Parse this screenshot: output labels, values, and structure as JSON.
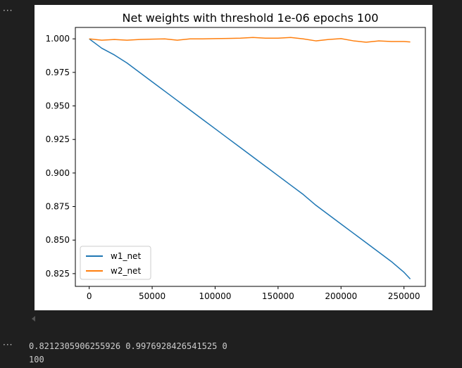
{
  "cell": {
    "toggle_top": "···",
    "toggle_bottom": "···"
  },
  "chart_data": {
    "type": "line",
    "title": "Net weights with threshold 1e-06 epochs 100",
    "xlabel": "",
    "ylabel": "",
    "xlim": [
      -11000,
      267000
    ],
    "ylim": [
      0.8155,
      1.0085
    ],
    "x_ticks": [
      0,
      50000,
      100000,
      150000,
      200000,
      250000
    ],
    "x_tick_labels": [
      "0",
      "50000",
      "100000",
      "150000",
      "200000",
      "250000"
    ],
    "y_ticks": [
      0.825,
      0.85,
      0.875,
      0.9,
      0.925,
      0.95,
      0.975,
      1.0
    ],
    "y_tick_labels": [
      "0.825",
      "0.850",
      "0.875",
      "0.900",
      "0.925",
      "0.950",
      "0.975",
      "1.000"
    ],
    "grid": false,
    "legend_position": "lower-left",
    "series": [
      {
        "name": "w1_net",
        "color": "#1f77b4",
        "x": [
          0,
          10000,
          20000,
          30000,
          40000,
          50000,
          60000,
          70000,
          80000,
          90000,
          100000,
          110000,
          120000,
          130000,
          140000,
          150000,
          160000,
          170000,
          180000,
          190000,
          200000,
          210000,
          220000,
          230000,
          240000,
          250000,
          255000
        ],
        "y": [
          1.0,
          0.993,
          0.988,
          0.982,
          0.975,
          0.968,
          0.961,
          0.954,
          0.947,
          0.94,
          0.933,
          0.926,
          0.919,
          0.912,
          0.905,
          0.898,
          0.891,
          0.884,
          0.876,
          0.869,
          0.862,
          0.855,
          0.848,
          0.841,
          0.834,
          0.826,
          0.821
        ]
      },
      {
        "name": "w2_net",
        "color": "#ff7f0e",
        "x": [
          0,
          10000,
          20000,
          30000,
          40000,
          50000,
          60000,
          70000,
          80000,
          90000,
          100000,
          110000,
          120000,
          130000,
          140000,
          150000,
          160000,
          170000,
          180000,
          190000,
          200000,
          210000,
          220000,
          230000,
          240000,
          250000,
          255000
        ],
        "y": [
          1.0,
          0.999,
          0.9995,
          0.999,
          0.9995,
          0.9998,
          1.0,
          0.999,
          1.0,
          1.0,
          1.0002,
          1.0003,
          1.0005,
          1.001,
          1.0005,
          1.0005,
          1.001,
          1.0,
          0.9985,
          0.9995,
          1.0002,
          0.9985,
          0.9975,
          0.9985,
          0.998,
          0.998,
          0.9977
        ]
      }
    ]
  },
  "output": {
    "line1": "0.8212305906255926 0.9976928426541525 0",
    "line2": "100"
  }
}
